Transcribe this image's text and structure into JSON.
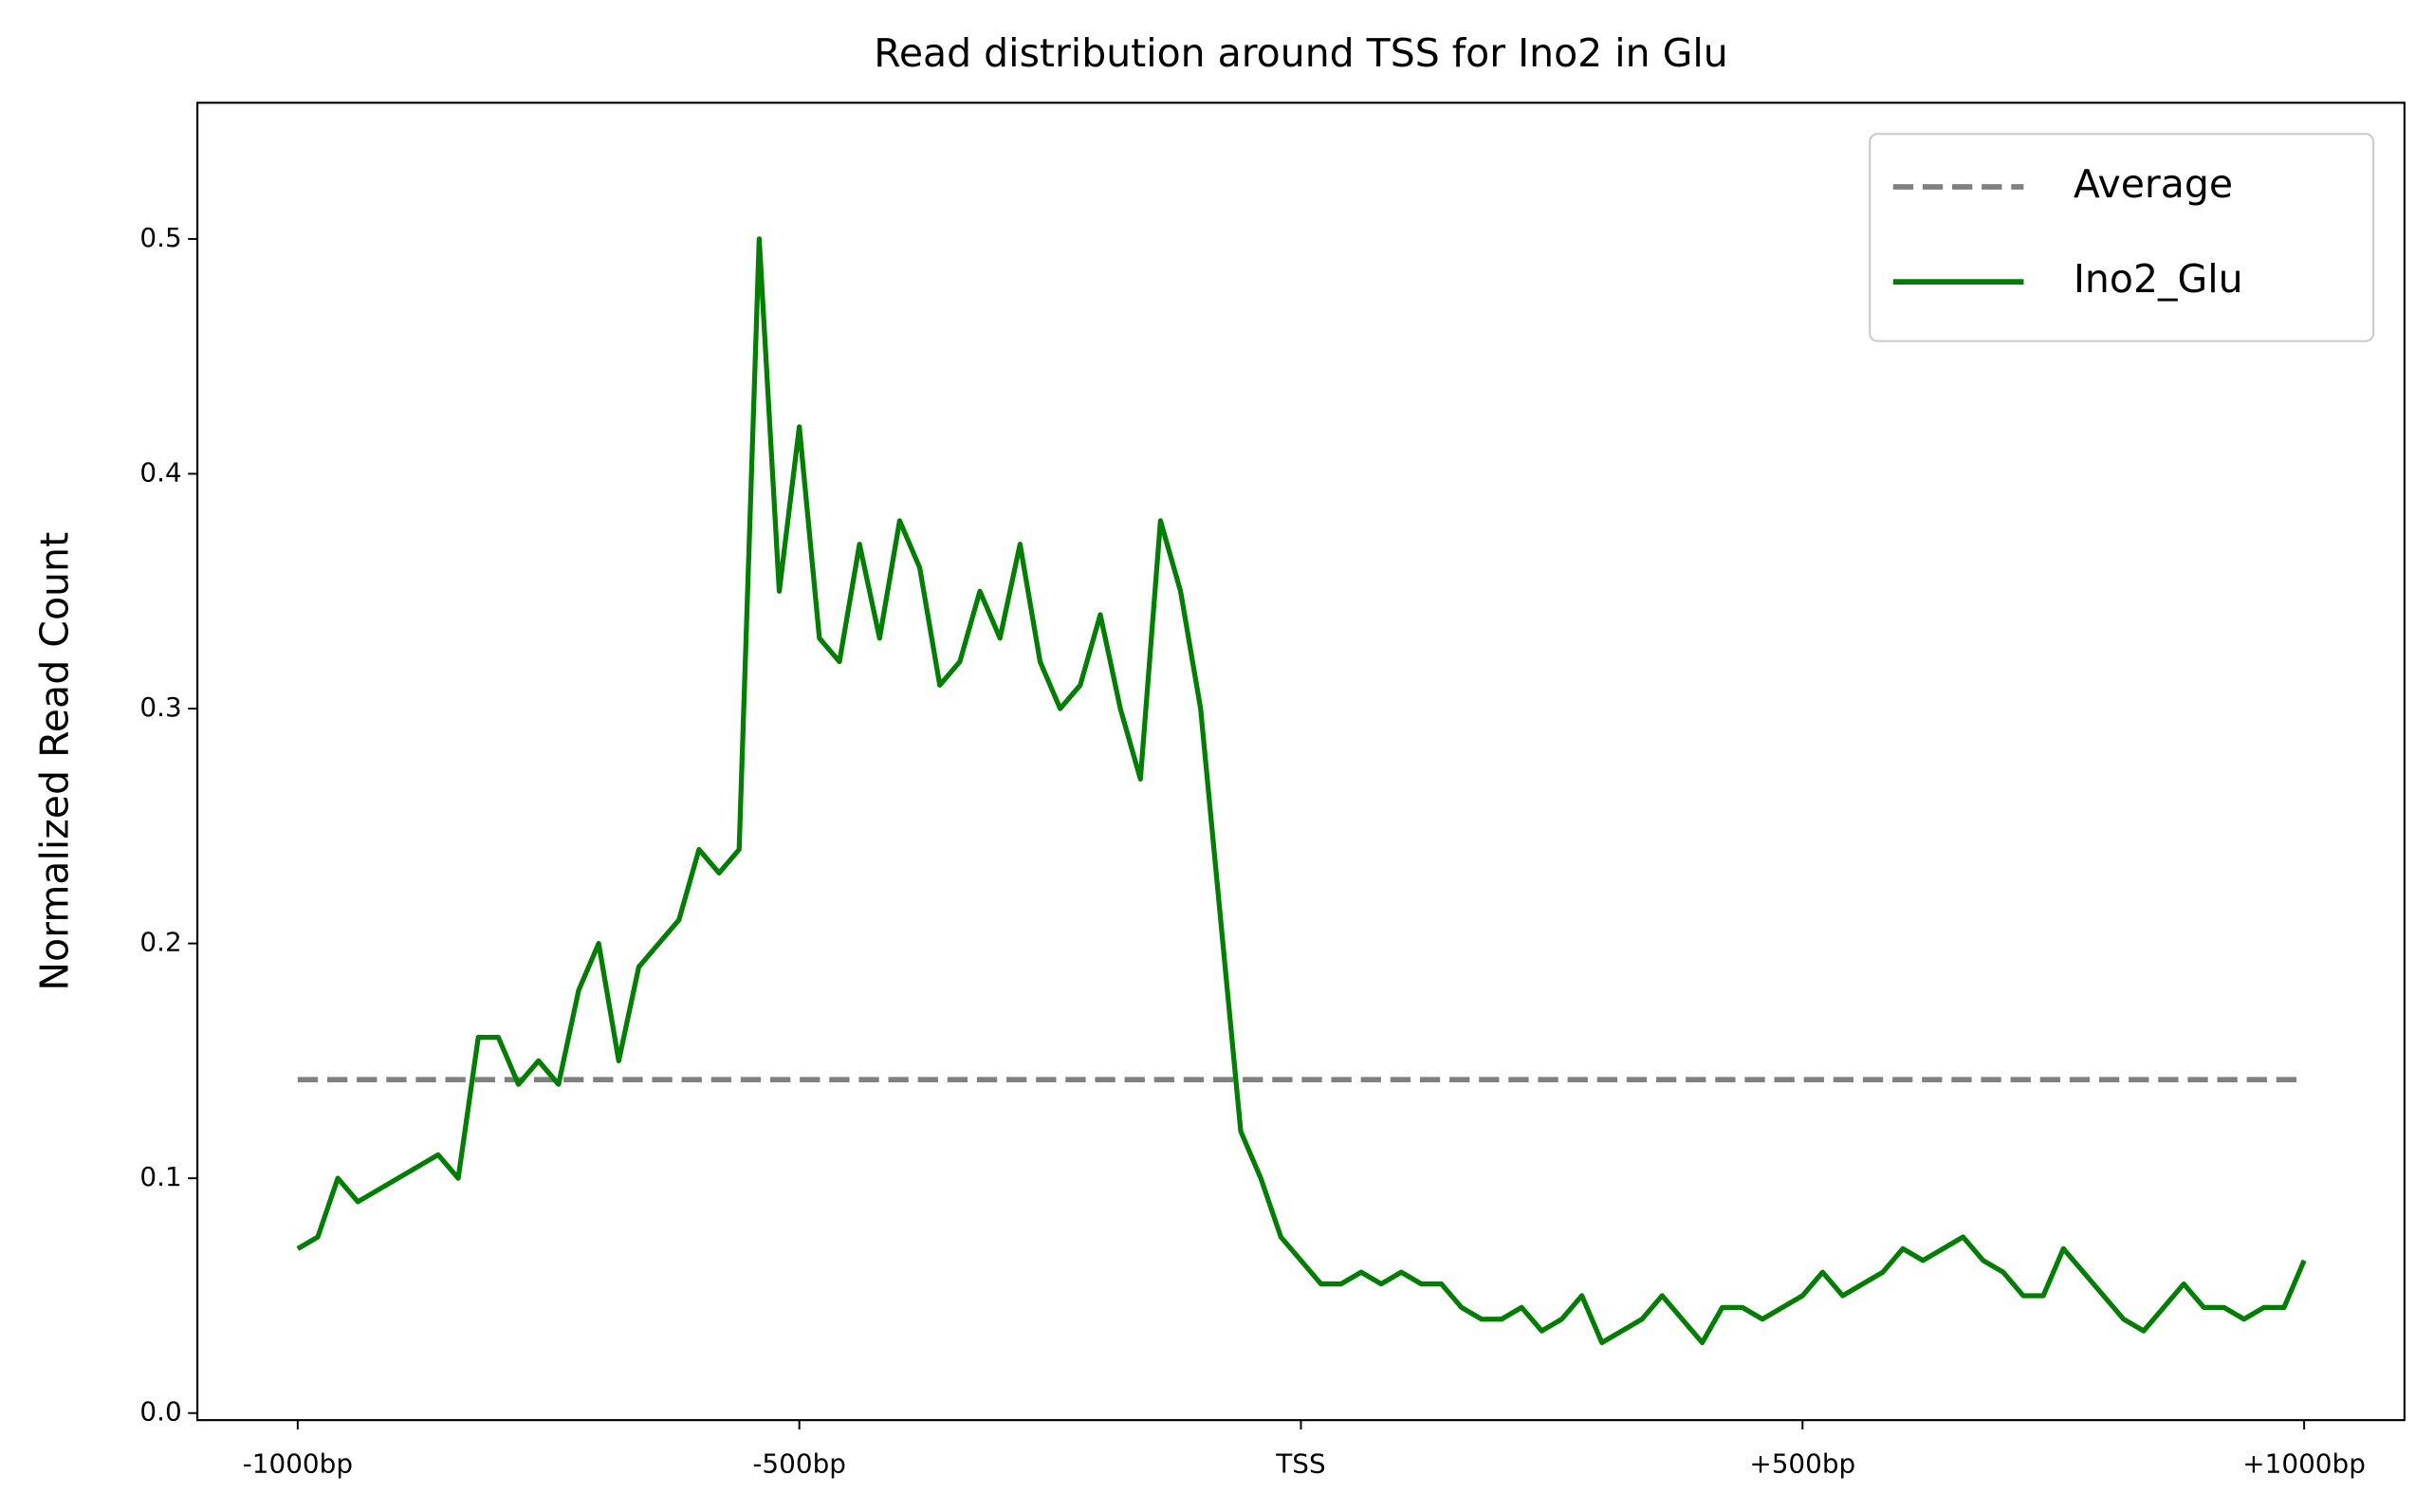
{
  "chart_data": {
    "type": "line",
    "title": "Read distribution around TSS for Ino2 in Glu",
    "y_label": "Normalized Read Count",
    "x": [
      -1000,
      -980,
      -960,
      -940,
      -920,
      -900,
      -880,
      -860,
      -840,
      -820,
      -800,
      -780,
      -760,
      -740,
      -720,
      -700,
      -680,
      -660,
      -640,
      -620,
      -600,
      -580,
      -560,
      -540,
      -520,
      -500,
      -480,
      -460,
      -440,
      -420,
      -400,
      -380,
      -360,
      -340,
      -320,
      -300,
      -280,
      -260,
      -240,
      -220,
      -200,
      -180,
      -160,
      -140,
      -120,
      -100,
      -80,
      -60,
      -40,
      -20,
      0,
      20,
      40,
      60,
      80,
      100,
      120,
      140,
      160,
      180,
      200,
      220,
      240,
      260,
      280,
      300,
      320,
      340,
      360,
      380,
      400,
      420,
      440,
      460,
      480,
      500,
      520,
      540,
      560,
      580,
      600,
      620,
      640,
      660,
      680,
      700,
      720,
      740,
      760,
      780,
      800,
      820,
      840,
      860,
      880,
      900,
      920,
      940,
      960,
      980,
      1000
    ],
    "series": [
      {
        "name": "Average",
        "color": "#808080",
        "linestyle": "dashed",
        "x": [
          -1000,
          1000
        ],
        "values": [
          0.142,
          0.142
        ]
      },
      {
        "name": "Ino2_Glu",
        "color": "#008000",
        "linestyle": "solid",
        "values": [
          0.07,
          0.075,
          0.1,
          0.09,
          0.095,
          0.1,
          0.105,
          0.11,
          0.1,
          0.16,
          0.16,
          0.14,
          0.15,
          0.14,
          0.18,
          0.2,
          0.15,
          0.19,
          0.2,
          0.21,
          0.24,
          0.23,
          0.24,
          0.5,
          0.35,
          0.42,
          0.33,
          0.32,
          0.37,
          0.33,
          0.38,
          0.36,
          0.31,
          0.32,
          0.35,
          0.33,
          0.37,
          0.32,
          0.3,
          0.31,
          0.34,
          0.3,
          0.27,
          0.38,
          0.35,
          0.3,
          0.21,
          0.12,
          0.1,
          0.075,
          0.065,
          0.055,
          0.055,
          0.06,
          0.055,
          0.06,
          0.055,
          0.055,
          0.045,
          0.04,
          0.04,
          0.045,
          0.035,
          0.04,
          0.05,
          0.03,
          0.035,
          0.04,
          0.05,
          0.04,
          0.03,
          0.045,
          0.045,
          0.04,
          0.045,
          0.05,
          0.06,
          0.05,
          0.055,
          0.06,
          0.07,
          0.065,
          0.07,
          0.075,
          0.065,
          0.06,
          0.05,
          0.05,
          0.07,
          0.06,
          0.05,
          0.04,
          0.035,
          0.045,
          0.055,
          0.045,
          0.045,
          0.04,
          0.045,
          0.045,
          0.065
        ]
      }
    ],
    "xlim": [
      -1100,
      1100
    ],
    "ylim": [
      -0.003,
      0.558
    ],
    "xticks": [
      {
        "value": -1000,
        "label": "-1000bp"
      },
      {
        "value": -500,
        "label": "-500bp"
      },
      {
        "value": 0,
        "label": "TSS"
      },
      {
        "value": 500,
        "label": "+500bp"
      },
      {
        "value": 1000,
        "label": "+1000bp"
      }
    ],
    "yticks": [
      {
        "value": 0,
        "label": "0.0"
      },
      0.1,
      0.2,
      0.3,
      0.4,
      0.5
    ],
    "legend": "upper right"
  }
}
